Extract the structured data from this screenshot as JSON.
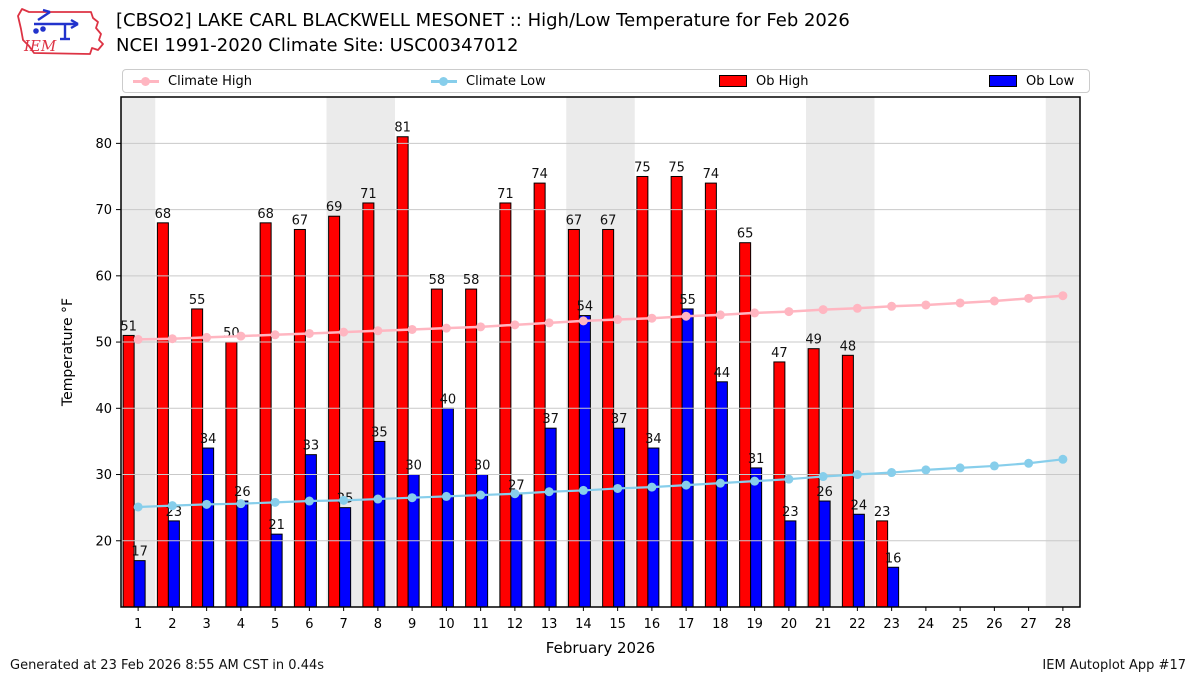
{
  "header": {
    "title_line1": "[CBSO2] LAKE CARL BLACKWELL MESONET :: High/Low Temperature for Feb 2026",
    "title_line2": "NCEI 1991-2020 Climate Site: USC00347012",
    "logo_text": "IEM"
  },
  "legend": {
    "items": [
      {
        "label": "Climate High",
        "type": "line",
        "color": "#ffb6c1"
      },
      {
        "label": "Climate Low",
        "type": "line",
        "color": "#87ceeb"
      },
      {
        "label": "Ob High",
        "type": "rect",
        "color": "#ff0000"
      },
      {
        "label": "Ob Low",
        "type": "rect",
        "color": "#0000ff"
      }
    ]
  },
  "chart_data": {
    "type": "bar",
    "title": "[CBSO2] LAKE CARL BLACKWELL MESONET :: High/Low Temperature for Feb 2026",
    "xlabel": "February 2026",
    "ylabel": "Temperature °F",
    "xlim": [
      0.5,
      28.5
    ],
    "ylim": [
      10,
      87
    ],
    "yticks": [
      20,
      30,
      40,
      50,
      60,
      70,
      80
    ],
    "x": [
      1,
      2,
      3,
      4,
      5,
      6,
      7,
      8,
      9,
      10,
      11,
      12,
      13,
      14,
      15,
      16,
      17,
      18,
      19,
      20,
      21,
      22,
      23,
      24,
      25,
      26,
      27,
      28
    ],
    "weekend_bands": [
      [
        0.5,
        1.5
      ],
      [
        6.5,
        8.5
      ],
      [
        13.5,
        15.5
      ],
      [
        20.5,
        22.5
      ],
      [
        27.5,
        28.5
      ]
    ],
    "grid": "horizontal",
    "legend_position": "top",
    "series": [
      {
        "name": "Ob High",
        "type": "bar",
        "color": "#ff0000",
        "values": [
          51,
          68,
          55,
          50,
          68,
          67,
          69,
          71,
          81,
          58,
          58,
          71,
          74,
          67,
          67,
          75,
          75,
          74,
          65,
          47,
          49,
          48,
          23,
          null,
          null,
          null,
          null,
          null
        ]
      },
      {
        "name": "Ob Low",
        "type": "bar",
        "color": "#0000ff",
        "values": [
          17,
          23,
          34,
          26,
          21,
          33,
          25,
          35,
          30,
          40,
          30,
          27,
          37,
          54,
          37,
          34,
          55,
          44,
          31,
          23,
          26,
          24,
          16,
          null,
          null,
          null,
          null,
          null
        ]
      },
      {
        "name": "Climate High",
        "type": "line",
        "color": "#ffb6c1",
        "values": [
          50.4,
          50.5,
          50.7,
          50.9,
          51.1,
          51.3,
          51.5,
          51.7,
          51.9,
          52.1,
          52.3,
          52.6,
          52.9,
          53.2,
          53.4,
          53.6,
          53.9,
          54.1,
          54.4,
          54.6,
          54.9,
          55.1,
          55.4,
          55.6,
          55.9,
          56.2,
          56.6,
          57.0
        ]
      },
      {
        "name": "Climate Low",
        "type": "line",
        "color": "#87ceeb",
        "values": [
          25.1,
          25.3,
          25.5,
          25.6,
          25.8,
          26.0,
          26.1,
          26.3,
          26.5,
          26.7,
          26.9,
          27.1,
          27.4,
          27.6,
          27.9,
          28.1,
          28.4,
          28.7,
          29.0,
          29.3,
          29.7,
          30.0,
          30.3,
          30.7,
          31.0,
          31.3,
          31.7,
          32.3
        ]
      }
    ],
    "colors": {
      "weekend_band": "#ebebeb",
      "gridline": "#c9c9c9",
      "axis": "#000000",
      "bar_label": "#111111"
    }
  },
  "footer": {
    "left": "Generated at 23 Feb 2026 8:55 AM CST in 0.44s",
    "right": "IEM Autoplot App #17"
  }
}
